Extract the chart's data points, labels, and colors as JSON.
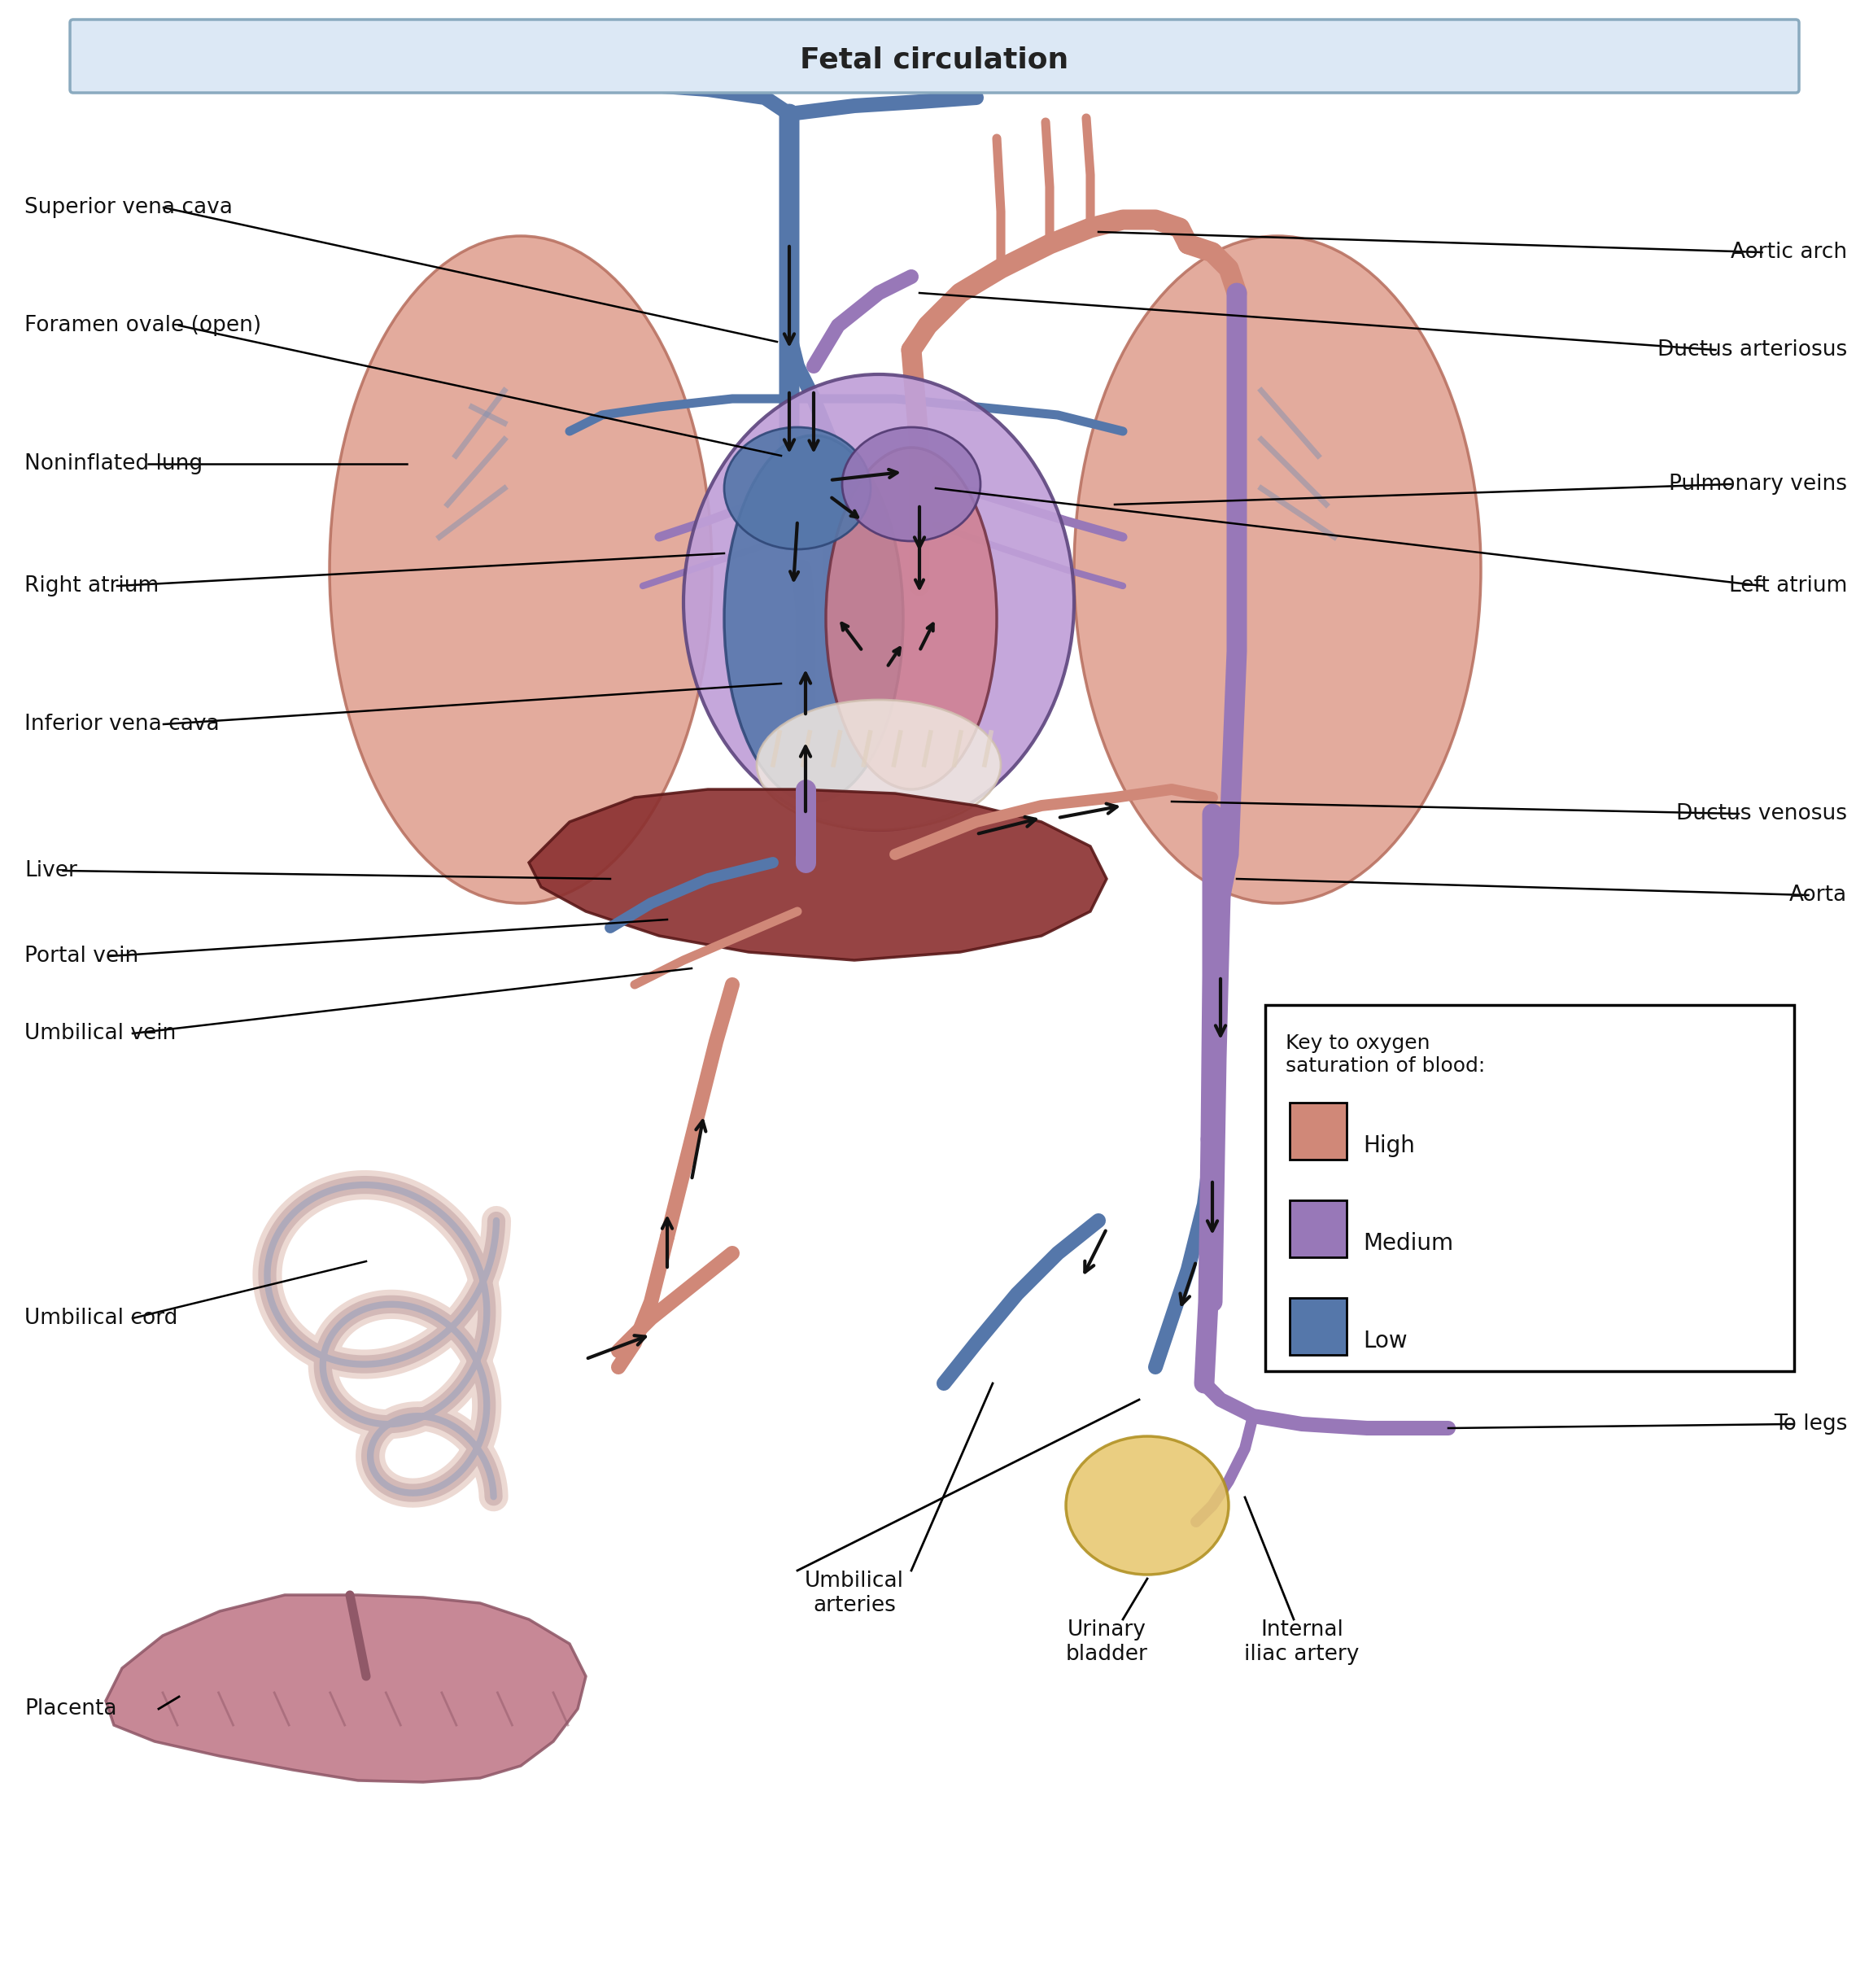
{
  "title": "Fetal circulation",
  "title_bg": "#dce8f5",
  "title_border": "#8aaabf",
  "background": "#ffffff",
  "C_HIGH": "#d08878",
  "C_MED": "#9878b8",
  "C_LOW": "#5577aa",
  "C_LUNG": "#e0a090",
  "C_LUNG_EDGE": "#b87060",
  "C_LIVER": "#8B3030",
  "C_LIVER_EDGE": "#5a1818",
  "C_PLACENTA": "#c07888",
  "C_BLADDER": "#e8c870",
  "LW_MAIN": 18,
  "LW_MED": 13,
  "LW_SMALL": 8,
  "legend_title": "Key to oxygen\nsaturation of blood:",
  "legend_items": [
    "High",
    "Medium",
    "Low"
  ],
  "legend_colors": [
    "#d08878",
    "#9878b8",
    "#5577aa"
  ],
  "font_size_title": 26,
  "font_size_label": 19
}
